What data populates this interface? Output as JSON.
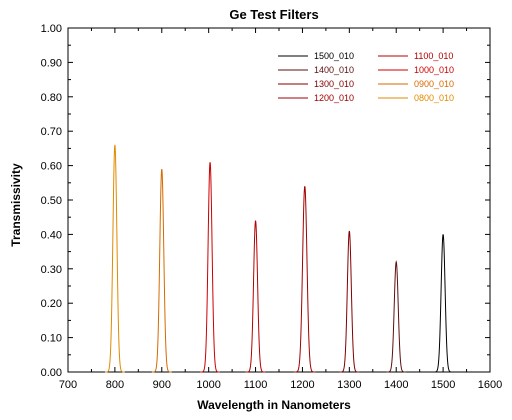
{
  "chart_data": {
    "type": "line",
    "title": "Ge Test Filters",
    "xlabel": "Wavelength in Nanometers",
    "ylabel": "Transmissivity",
    "xlim": [
      700,
      1600
    ],
    "ylim": [
      0,
      1.0
    ],
    "x_ticks": [
      "700",
      "800",
      "900",
      "1000",
      "1100",
      "1200",
      "1300",
      "1400",
      "1500",
      "1600"
    ],
    "y_ticks": [
      "0.00",
      "0.10",
      "0.20",
      "0.30",
      "0.40",
      "0.50",
      "0.60",
      "0.70",
      "0.80",
      "0.90",
      "1.00"
    ],
    "grid": false,
    "legend_position": "top-right",
    "series": [
      {
        "name": "1500_010",
        "color": "#000000",
        "center": 1500,
        "peak": 0.4,
        "fwhm": 10
      },
      {
        "name": "1400_010",
        "color": "#5a1010",
        "center": 1400,
        "peak": 0.32,
        "fwhm": 10
      },
      {
        "name": "1300_010",
        "color": "#800000",
        "center": 1300,
        "peak": 0.41,
        "fwhm": 10
      },
      {
        "name": "1200_010",
        "color": "#a00000",
        "center": 1205,
        "peak": 0.54,
        "fwhm": 11
      },
      {
        "name": "1100_010",
        "color": "#b40000",
        "center": 1100,
        "peak": 0.44,
        "fwhm": 10
      },
      {
        "name": "1000_010",
        "color": "#cc0000",
        "center": 1003,
        "peak": 0.61,
        "fwhm": 10
      },
      {
        "name": "0900_010",
        "color": "#d46a00",
        "center": 900,
        "peak": 0.59,
        "fwhm": 10
      },
      {
        "name": "0800_010",
        "color": "#e08a00",
        "center": 800,
        "peak": 0.66,
        "fwhm": 10
      }
    ]
  }
}
